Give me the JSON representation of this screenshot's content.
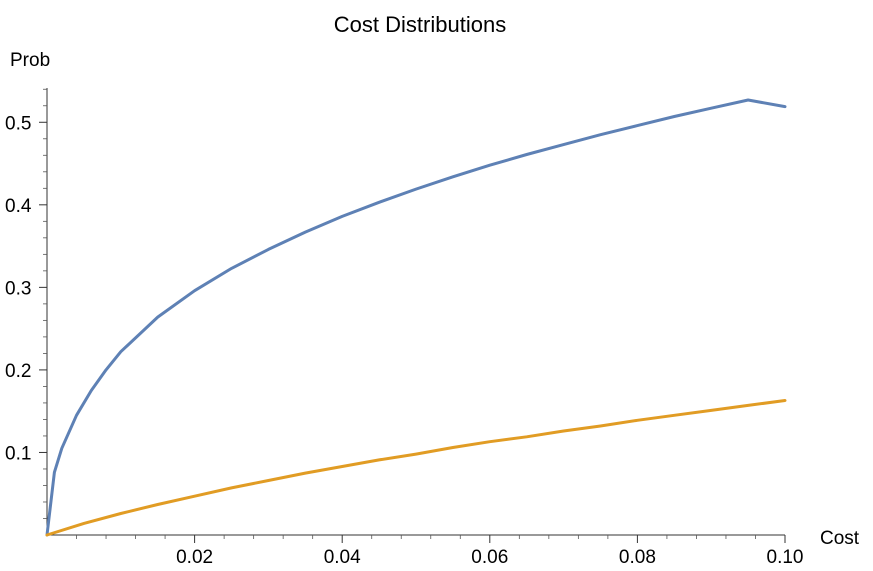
{
  "chart_data": {
    "type": "line",
    "title": "Cost Distributions",
    "xlabel": "Cost",
    "ylabel": "Prob",
    "xlim": [
      0,
      0.1
    ],
    "ylim": [
      0,
      0.55
    ],
    "x_ticks": [
      {
        "value": 0.02,
        "label": "0.02"
      },
      {
        "value": 0.04,
        "label": "0.04"
      },
      {
        "value": 0.06,
        "label": "0.06"
      },
      {
        "value": 0.08,
        "label": "0.08"
      },
      {
        "value": 0.1,
        "label": "0.10"
      }
    ],
    "y_ticks": [
      {
        "value": 0.1,
        "label": "0.1"
      },
      {
        "value": 0.2,
        "label": "0.2"
      },
      {
        "value": 0.3,
        "label": "0.3"
      },
      {
        "value": 0.4,
        "label": "0.4"
      },
      {
        "value": 0.5,
        "label": "0.5"
      }
    ],
    "grid": false,
    "series": [
      {
        "color": "#5e81b5",
        "x": [
          0,
          0.001,
          0.002,
          0.004,
          0.006,
          0.008,
          0.01,
          0.015,
          0.02,
          0.025,
          0.03,
          0.035,
          0.04,
          0.045,
          0.05,
          0.055,
          0.06,
          0.065,
          0.07,
          0.075,
          0.08,
          0.085,
          0.09,
          0.095,
          0.1
        ],
        "y": [
          0,
          0.076,
          0.105,
          0.145,
          0.175,
          0.2,
          0.222,
          0.264,
          0.296,
          0.323,
          0.346,
          0.367,
          0.386,
          0.403,
          0.419,
          0.434,
          0.448,
          0.461,
          0.473,
          0.485,
          0.496,
          0.507,
          0.517,
          0.527,
          0.519
        ]
      },
      {
        "color": "#e19c24",
        "x": [
          0,
          0.005,
          0.01,
          0.015,
          0.02,
          0.025,
          0.03,
          0.035,
          0.04,
          0.045,
          0.05,
          0.055,
          0.06,
          0.065,
          0.07,
          0.075,
          0.08,
          0.085,
          0.09,
          0.095,
          0.1
        ],
        "y": [
          0,
          0.014,
          0.026,
          0.037,
          0.047,
          0.057,
          0.066,
          0.075,
          0.083,
          0.091,
          0.098,
          0.106,
          0.113,
          0.119,
          0.126,
          0.132,
          0.139,
          0.145,
          0.151,
          0.157,
          0.163
        ]
      }
    ]
  }
}
